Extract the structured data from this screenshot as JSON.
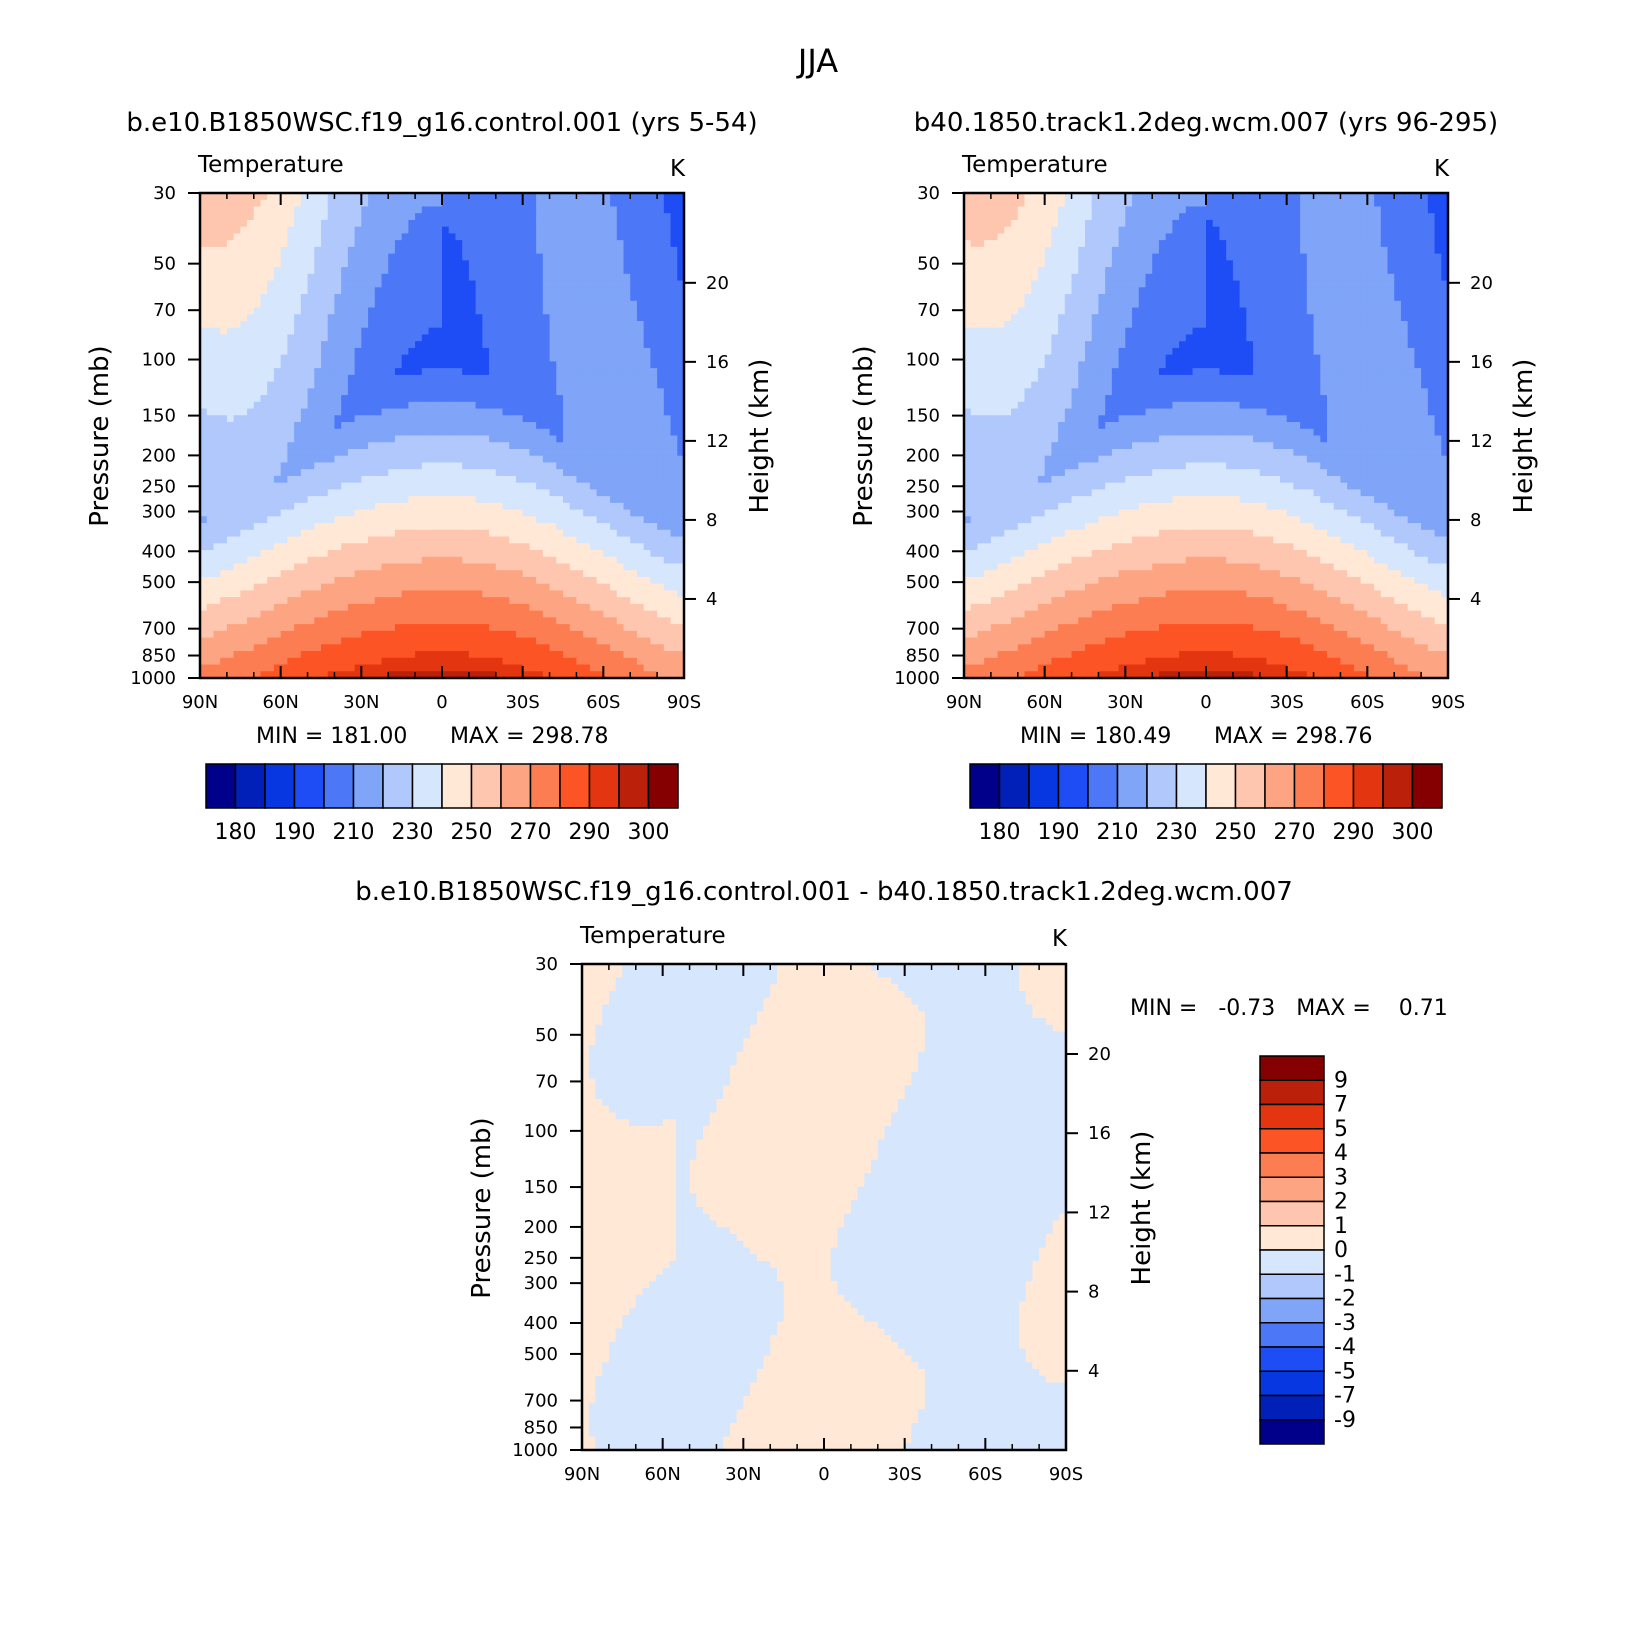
{
  "page_title": "JJA",
  "colors": {
    "abs_palette": [
      "#00008a",
      "#0020b8",
      "#0637e0",
      "#1e4cf5",
      "#4c78f7",
      "#7fa4f8",
      "#b0c8fb",
      "#d5e6fd",
      "#ffe8d6",
      "#fec6ae",
      "#fda583",
      "#fd7d52",
      "#fc5425",
      "#e33610",
      "#bb200a",
      "#850000"
    ],
    "diff_palette": [
      "#850000",
      "#bb200a",
      "#e33610",
      "#fc5425",
      "#fd7d52",
      "#fda583",
      "#fec6ae",
      "#ffe8d6",
      "#d5e6fd",
      "#b0c8fb",
      "#7fa4f8",
      "#4c78f7",
      "#1e4cf5",
      "#0637e0",
      "#0020b8",
      "#00008a"
    ]
  },
  "chart_data": [
    {
      "type": "heatmap",
      "title": "b.e10.B1850WSC.f19_g16.control.001 (yrs 5-54)",
      "variable_label": "Temperature",
      "units_label": "K",
      "ylabel": "Pressure (mb)",
      "ylabel2": "Height (km)",
      "x_ticks": [
        "90N",
        "60N",
        "30N",
        "0",
        "30S",
        "60S",
        "90S"
      ],
      "y_ticks": [
        30,
        50,
        70,
        100,
        150,
        200,
        250,
        300,
        400,
        500,
        700,
        850,
        1000
      ],
      "y2_ticks": [
        4,
        8,
        12,
        16,
        20
      ],
      "min_label": "MIN = 181.00",
      "max_label": "MAX = 298.78",
      "colorbar_labels": [
        "180",
        "190",
        "210",
        "230",
        "250",
        "270",
        "290",
        "300"
      ]
    },
    {
      "type": "heatmap",
      "title": "b40.1850.track1.2deg.wcm.007 (yrs 96-295)",
      "variable_label": "Temperature",
      "units_label": "K",
      "ylabel": "Pressure (mb)",
      "ylabel2": "Height (km)",
      "x_ticks": [
        "90N",
        "60N",
        "30N",
        "0",
        "30S",
        "60S",
        "90S"
      ],
      "y_ticks": [
        30,
        50,
        70,
        100,
        150,
        200,
        250,
        300,
        400,
        500,
        700,
        850,
        1000
      ],
      "y2_ticks": [
        4,
        8,
        12,
        16,
        20
      ],
      "min_label": "MIN = 180.49",
      "max_label": "MAX = 298.76",
      "colorbar_labels": [
        "180",
        "190",
        "210",
        "230",
        "250",
        "270",
        "290",
        "300"
      ]
    },
    {
      "type": "heatmap",
      "title": "b.e10.B1850WSC.f19_g16.control.001 - b40.1850.track1.2deg.wcm.007",
      "variable_label": "Temperature",
      "units_label": "K",
      "ylabel": "Pressure (mb)",
      "ylabel2": "Height (km)",
      "x_ticks": [
        "90N",
        "60N",
        "30N",
        "0",
        "30S",
        "60S",
        "90S"
      ],
      "y_ticks": [
        30,
        50,
        70,
        100,
        150,
        200,
        250,
        300,
        400,
        500,
        700,
        850,
        1000
      ],
      "y2_ticks": [
        4,
        8,
        12,
        16,
        20
      ],
      "min_label": "MIN =   -0.73   MAX =    0.71",
      "colorbar_labels": [
        "9",
        "7",
        "5",
        "4",
        "3",
        "2",
        "1",
        "0",
        "-1",
        "-2",
        "-3",
        "-4",
        "-5",
        "-7",
        "-9"
      ]
    }
  ]
}
